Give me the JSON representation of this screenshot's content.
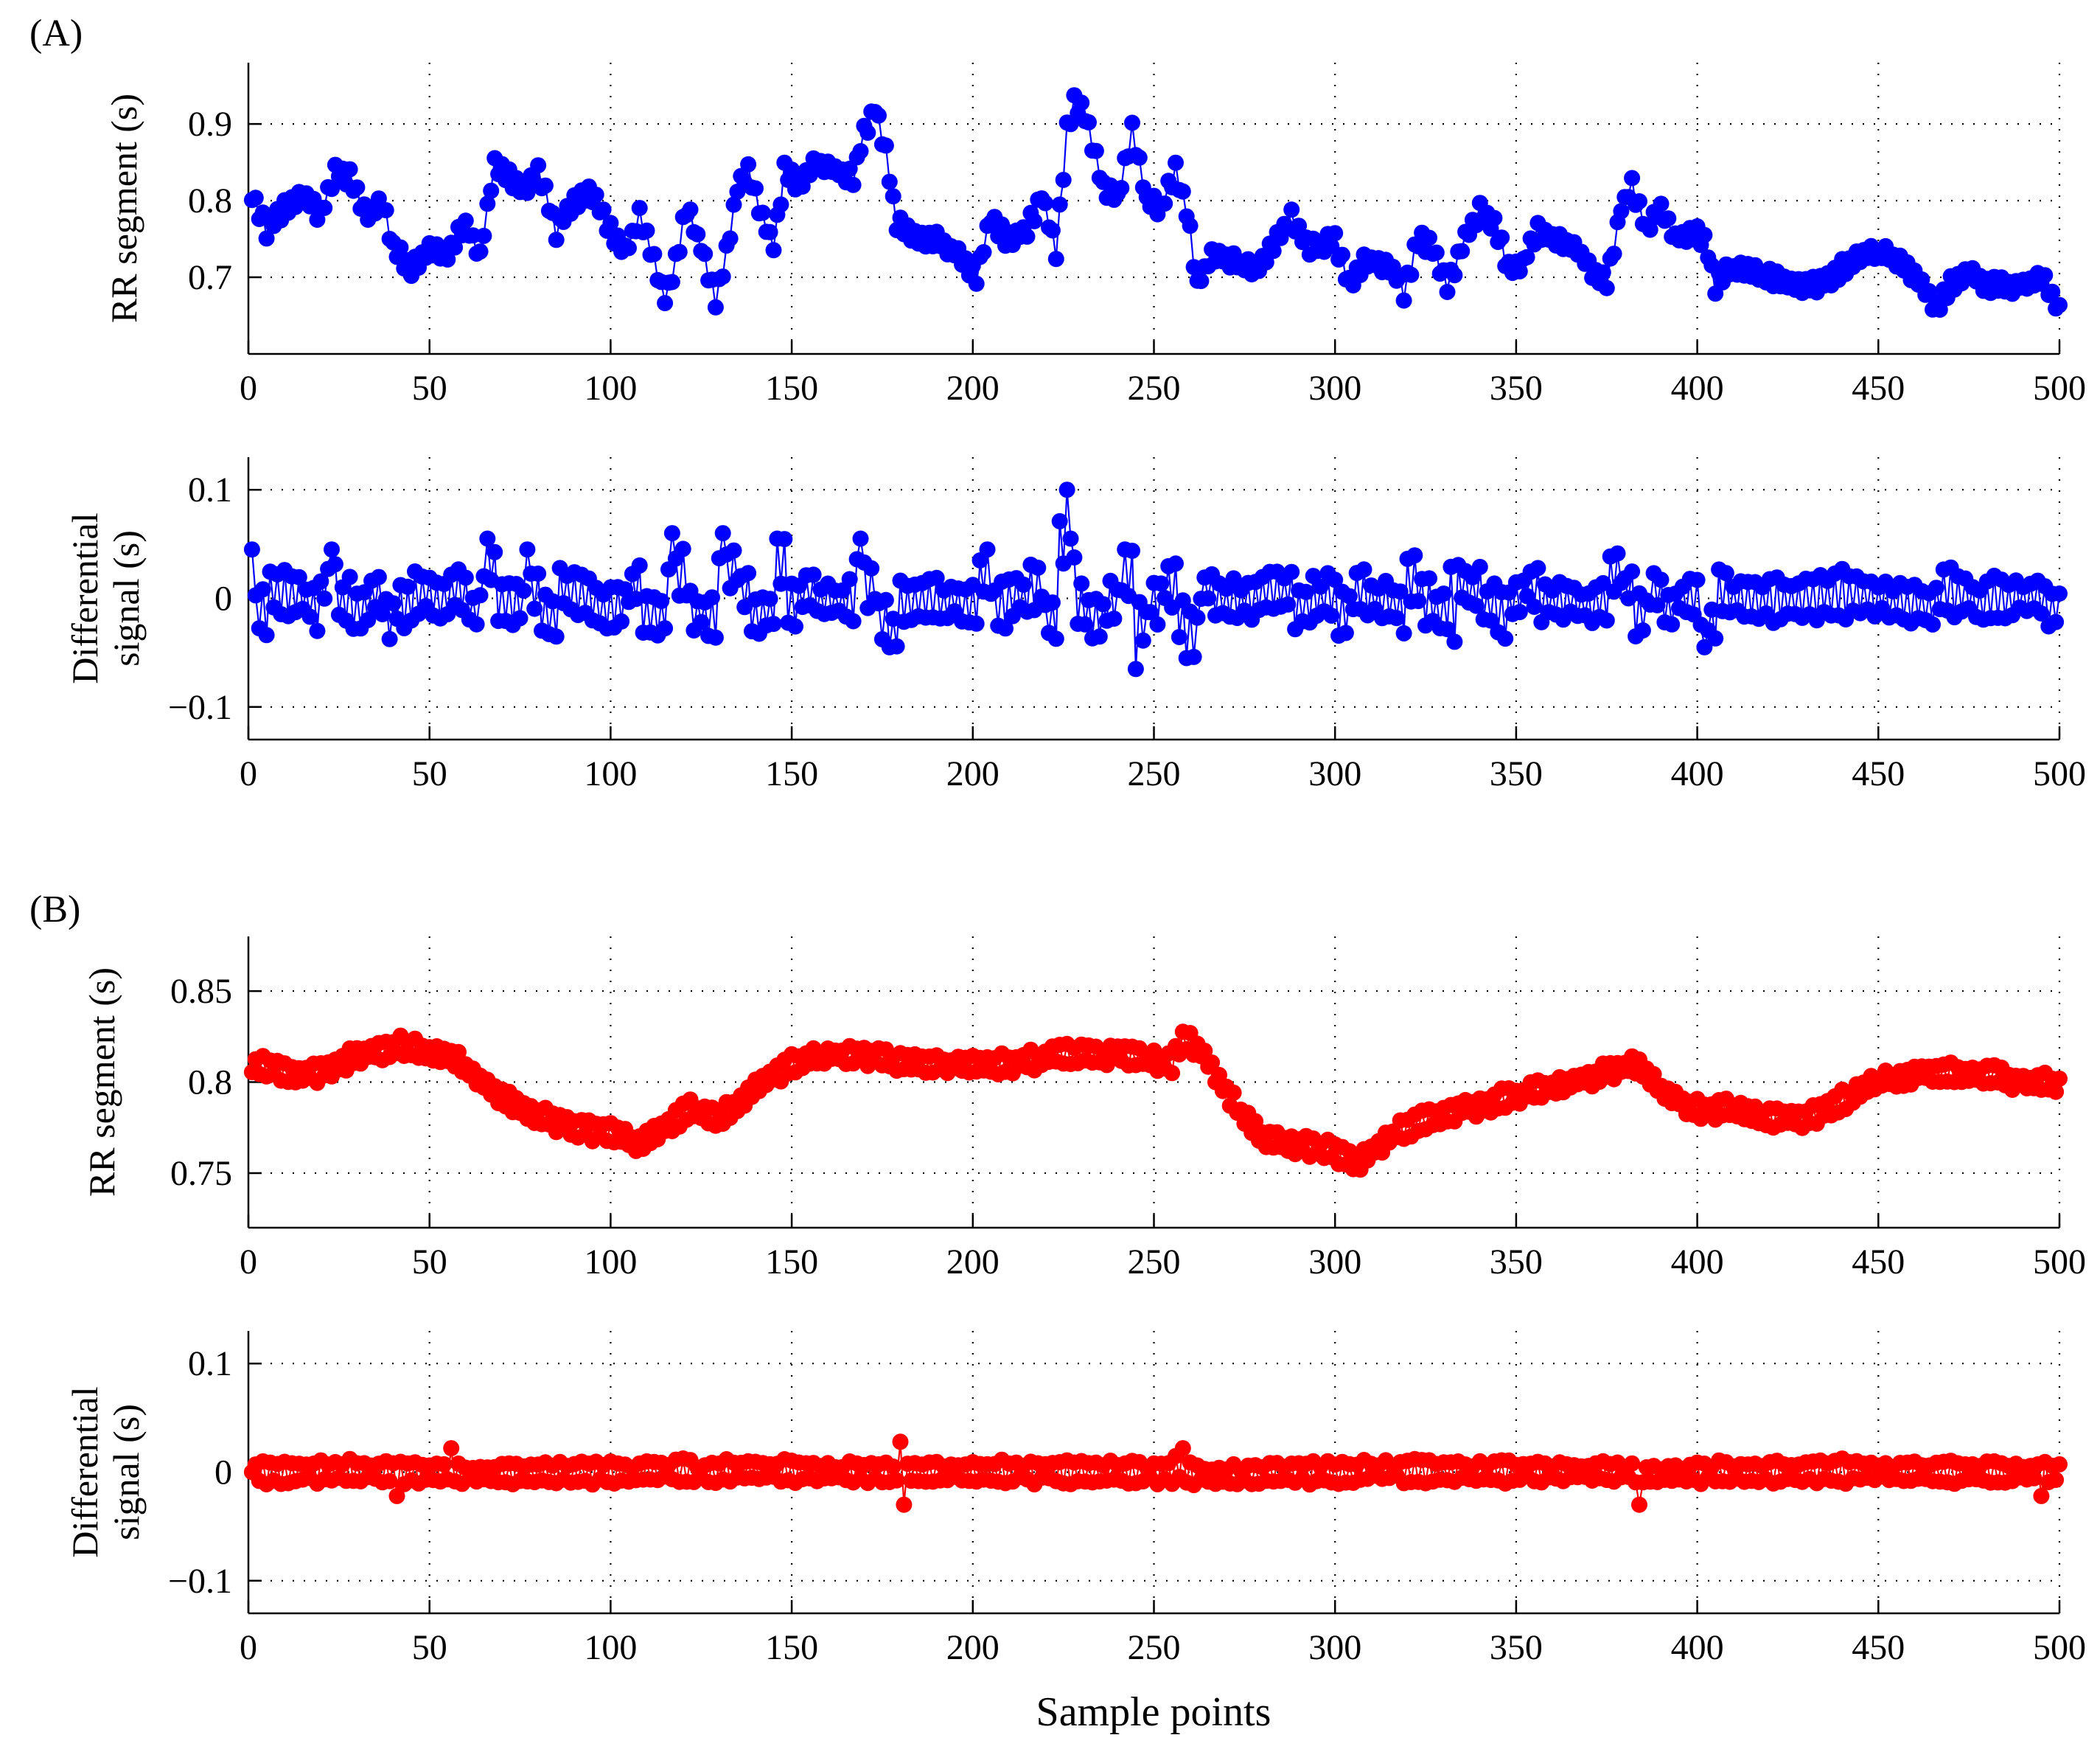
{
  "figure": {
    "panel_labels": [
      "(A)",
      "(B)"
    ],
    "xlabel": "Sample points"
  },
  "chart_data": [
    {
      "type": "line",
      "panel": "(A)",
      "series_name": "RR segment",
      "color": "#0000ff",
      "marker": "filled-circle",
      "title": "",
      "xlabel": "",
      "ylabel": "RR segment (s)",
      "xlim": [
        0,
        500
      ],
      "ylim": [
        0.6,
        0.98
      ],
      "xticks": [
        0,
        50,
        100,
        150,
        200,
        250,
        300,
        350,
        400,
        450,
        500
      ],
      "yticks": [
        0.7,
        0.8,
        0.9
      ],
      "ytick_labels": [
        "0.7",
        "0.8",
        "0.9"
      ],
      "grid": true,
      "generator": "piecewise-linear-with-alternating-jitter",
      "n_points": 500,
      "x_start": 1,
      "anchors": [
        [
          1,
          0.81
        ],
        [
          5,
          0.76
        ],
        [
          10,
          0.79
        ],
        [
          15,
          0.81
        ],
        [
          20,
          0.78
        ],
        [
          24,
          0.84
        ],
        [
          28,
          0.83
        ],
        [
          33,
          0.78
        ],
        [
          37,
          0.8
        ],
        [
          40,
          0.74
        ],
        [
          45,
          0.71
        ],
        [
          50,
          0.74
        ],
        [
          55,
          0.73
        ],
        [
          60,
          0.77
        ],
        [
          64,
          0.73
        ],
        [
          68,
          0.85
        ],
        [
          72,
          0.83
        ],
        [
          76,
          0.81
        ],
        [
          80,
          0.84
        ],
        [
          85,
          0.76
        ],
        [
          90,
          0.8
        ],
        [
          95,
          0.81
        ],
        [
          100,
          0.76
        ],
        [
          104,
          0.73
        ],
        [
          108,
          0.78
        ],
        [
          112,
          0.72
        ],
        [
          115,
          0.67
        ],
        [
          118,
          0.72
        ],
        [
          121,
          0.79
        ],
        [
          125,
          0.74
        ],
        [
          129,
          0.67
        ],
        [
          132,
          0.73
        ],
        [
          135,
          0.82
        ],
        [
          138,
          0.84
        ],
        [
          141,
          0.79
        ],
        [
          145,
          0.74
        ],
        [
          148,
          0.84
        ],
        [
          152,
          0.82
        ],
        [
          157,
          0.85
        ],
        [
          162,
          0.84
        ],
        [
          167,
          0.83
        ],
        [
          170,
          0.89
        ],
        [
          173,
          0.92
        ],
        [
          176,
          0.86
        ],
        [
          179,
          0.77
        ],
        [
          184,
          0.75
        ],
        [
          190,
          0.75
        ],
        [
          196,
          0.73
        ],
        [
          201,
          0.7
        ],
        [
          205,
          0.78
        ],
        [
          209,
          0.75
        ],
        [
          215,
          0.76
        ],
        [
          219,
          0.81
        ],
        [
          223,
          0.73
        ],
        [
          226,
          0.89
        ],
        [
          228,
          0.93
        ],
        [
          231,
          0.91
        ],
        [
          236,
          0.82
        ],
        [
          240,
          0.8
        ],
        [
          244,
          0.89
        ],
        [
          248,
          0.8
        ],
        [
          252,
          0.79
        ],
        [
          256,
          0.84
        ],
        [
          259,
          0.79
        ],
        [
          262,
          0.69
        ],
        [
          266,
          0.73
        ],
        [
          272,
          0.72
        ],
        [
          278,
          0.71
        ],
        [
          284,
          0.75
        ],
        [
          288,
          0.78
        ],
        [
          292,
          0.74
        ],
        [
          296,
          0.74
        ],
        [
          300,
          0.75
        ],
        [
          304,
          0.69
        ],
        [
          308,
          0.72
        ],
        [
          312,
          0.72
        ],
        [
          316,
          0.71
        ],
        [
          319,
          0.68
        ],
        [
          323,
          0.75
        ],
        [
          327,
          0.74
        ],
        [
          331,
          0.69
        ],
        [
          336,
          0.75
        ],
        [
          340,
          0.79
        ],
        [
          344,
          0.77
        ],
        [
          348,
          0.71
        ],
        [
          352,
          0.72
        ],
        [
          356,
          0.76
        ],
        [
          361,
          0.75
        ],
        [
          366,
          0.74
        ],
        [
          371,
          0.71
        ],
        [
          375,
          0.69
        ],
        [
          379,
          0.79
        ],
        [
          382,
          0.82
        ],
        [
          386,
          0.76
        ],
        [
          390,
          0.79
        ],
        [
          394,
          0.75
        ],
        [
          398,
          0.76
        ],
        [
          402,
          0.75
        ],
        [
          405,
          0.69
        ],
        [
          409,
          0.71
        ],
        [
          414,
          0.71
        ],
        [
          420,
          0.7
        ],
        [
          426,
          0.69
        ],
        [
          432,
          0.69
        ],
        [
          437,
          0.7
        ],
        [
          442,
          0.72
        ],
        [
          447,
          0.73
        ],
        [
          452,
          0.73
        ],
        [
          457,
          0.72
        ],
        [
          462,
          0.69
        ],
        [
          466,
          0.66
        ],
        [
          470,
          0.69
        ],
        [
          475,
          0.71
        ],
        [
          480,
          0.69
        ],
        [
          485,
          0.69
        ],
        [
          490,
          0.69
        ],
        [
          495,
          0.7
        ],
        [
          499,
          0.67
        ],
        [
          500,
          0.66
        ]
      ],
      "jitter_amplitude": 0.012
    },
    {
      "type": "line",
      "panel": "(A)",
      "series_name": "Differential signal",
      "color": "#0000ff",
      "marker": "filled-circle",
      "title": "",
      "xlabel": "",
      "ylabel": "Differential signal (s)",
      "xlim": [
        0,
        500
      ],
      "ylim": [
        -0.13,
        0.13
      ],
      "xticks": [
        0,
        50,
        100,
        150,
        200,
        250,
        300,
        350,
        400,
        450,
        500
      ],
      "yticks": [
        -0.1,
        0,
        0.1
      ],
      "ytick_labels": [
        "−0.1",
        "0",
        "0.1"
      ],
      "grid": true,
      "generator": "derivative-of-panel-A-top",
      "n_points": 500,
      "x_start": 1,
      "noted_peaks": [
        [
          1,
          0.045
        ],
        [
          23,
          0.045
        ],
        [
          66,
          0.055
        ],
        [
          77,
          0.045
        ],
        [
          117,
          0.06
        ],
        [
          131,
          0.06
        ],
        [
          146,
          0.055
        ],
        [
          169,
          0.055
        ],
        [
          204,
          0.045
        ],
        [
          226,
          0.1
        ],
        [
          227,
          0.055
        ],
        [
          242,
          0.045
        ],
        [
          245,
          -0.065
        ],
        [
          259,
          -0.055
        ],
        [
          177,
          -0.045
        ],
        [
          19,
          -0.03
        ],
        [
          333,
          -0.04
        ],
        [
          402,
          -0.045
        ]
      ]
    },
    {
      "type": "line",
      "panel": "(B)",
      "series_name": "RR segment",
      "color": "#ff0000",
      "marker": "filled-circle",
      "title": "",
      "xlabel": "",
      "ylabel": "RR segment (s)",
      "xlim": [
        0,
        500
      ],
      "ylim": [
        0.72,
        0.88
      ],
      "xticks": [
        0,
        50,
        100,
        150,
        200,
        250,
        300,
        350,
        400,
        450,
        500
      ],
      "yticks": [
        0.75,
        0.8,
        0.85
      ],
      "ytick_labels": [
        "0.75",
        "0.8",
        "0.85"
      ],
      "grid": true,
      "generator": "piecewise-linear-with-alternating-jitter",
      "n_points": 500,
      "x_start": 1,
      "anchors": [
        [
          1,
          0.81
        ],
        [
          10,
          0.805
        ],
        [
          20,
          0.805
        ],
        [
          30,
          0.815
        ],
        [
          42,
          0.82
        ],
        [
          55,
          0.815
        ],
        [
          62,
          0.805
        ],
        [
          68,
          0.795
        ],
        [
          75,
          0.785
        ],
        [
          82,
          0.78
        ],
        [
          90,
          0.775
        ],
        [
          100,
          0.772
        ],
        [
          108,
          0.765
        ],
        [
          115,
          0.775
        ],
        [
          122,
          0.785
        ],
        [
          130,
          0.78
        ],
        [
          136,
          0.79
        ],
        [
          142,
          0.8
        ],
        [
          150,
          0.81
        ],
        [
          160,
          0.815
        ],
        [
          170,
          0.815
        ],
        [
          180,
          0.81
        ],
        [
          190,
          0.81
        ],
        [
          200,
          0.81
        ],
        [
          210,
          0.81
        ],
        [
          225,
          0.815
        ],
        [
          240,
          0.815
        ],
        [
          255,
          0.81
        ],
        [
          258,
          0.825
        ],
        [
          264,
          0.815
        ],
        [
          268,
          0.8
        ],
        [
          275,
          0.78
        ],
        [
          280,
          0.77
        ],
        [
          290,
          0.765
        ],
        [
          300,
          0.762
        ],
        [
          306,
          0.755
        ],
        [
          315,
          0.77
        ],
        [
          325,
          0.78
        ],
        [
          335,
          0.785
        ],
        [
          345,
          0.79
        ],
        [
          355,
          0.795
        ],
        [
          365,
          0.8
        ],
        [
          375,
          0.805
        ],
        [
          383,
          0.81
        ],
        [
          390,
          0.795
        ],
        [
          400,
          0.785
        ],
        [
          410,
          0.785
        ],
        [
          420,
          0.78
        ],
        [
          430,
          0.78
        ],
        [
          440,
          0.79
        ],
        [
          450,
          0.8
        ],
        [
          460,
          0.805
        ],
        [
          470,
          0.805
        ],
        [
          480,
          0.805
        ],
        [
          490,
          0.8
        ],
        [
          500,
          0.8
        ]
      ],
      "jitter_amplitude": 0.006
    },
    {
      "type": "line",
      "panel": "(B)",
      "series_name": "Differential signal",
      "color": "#ff0000",
      "marker": "filled-circle",
      "title": "",
      "xlabel": "Sample points",
      "ylabel": "Differential signal (s)",
      "xlim": [
        0,
        500
      ],
      "ylim": [
        -0.13,
        0.13
      ],
      "xticks": [
        0,
        50,
        100,
        150,
        200,
        250,
        300,
        350,
        400,
        450,
        500
      ],
      "yticks": [
        -0.1,
        0,
        0.1
      ],
      "ytick_labels": [
        "−0.1",
        "0",
        "0.1"
      ],
      "grid": true,
      "generator": "derivative-of-panel-B-top",
      "n_points": 500,
      "x_start": 1,
      "noted_peaks": [
        [
          56,
          0.022
        ],
        [
          180,
          0.028
        ],
        [
          181,
          -0.03
        ],
        [
          258,
          0.022
        ],
        [
          384,
          0.022
        ],
        [
          384,
          -0.03
        ],
        [
          41,
          -0.022
        ],
        [
          495,
          -0.022
        ]
      ]
    }
  ]
}
